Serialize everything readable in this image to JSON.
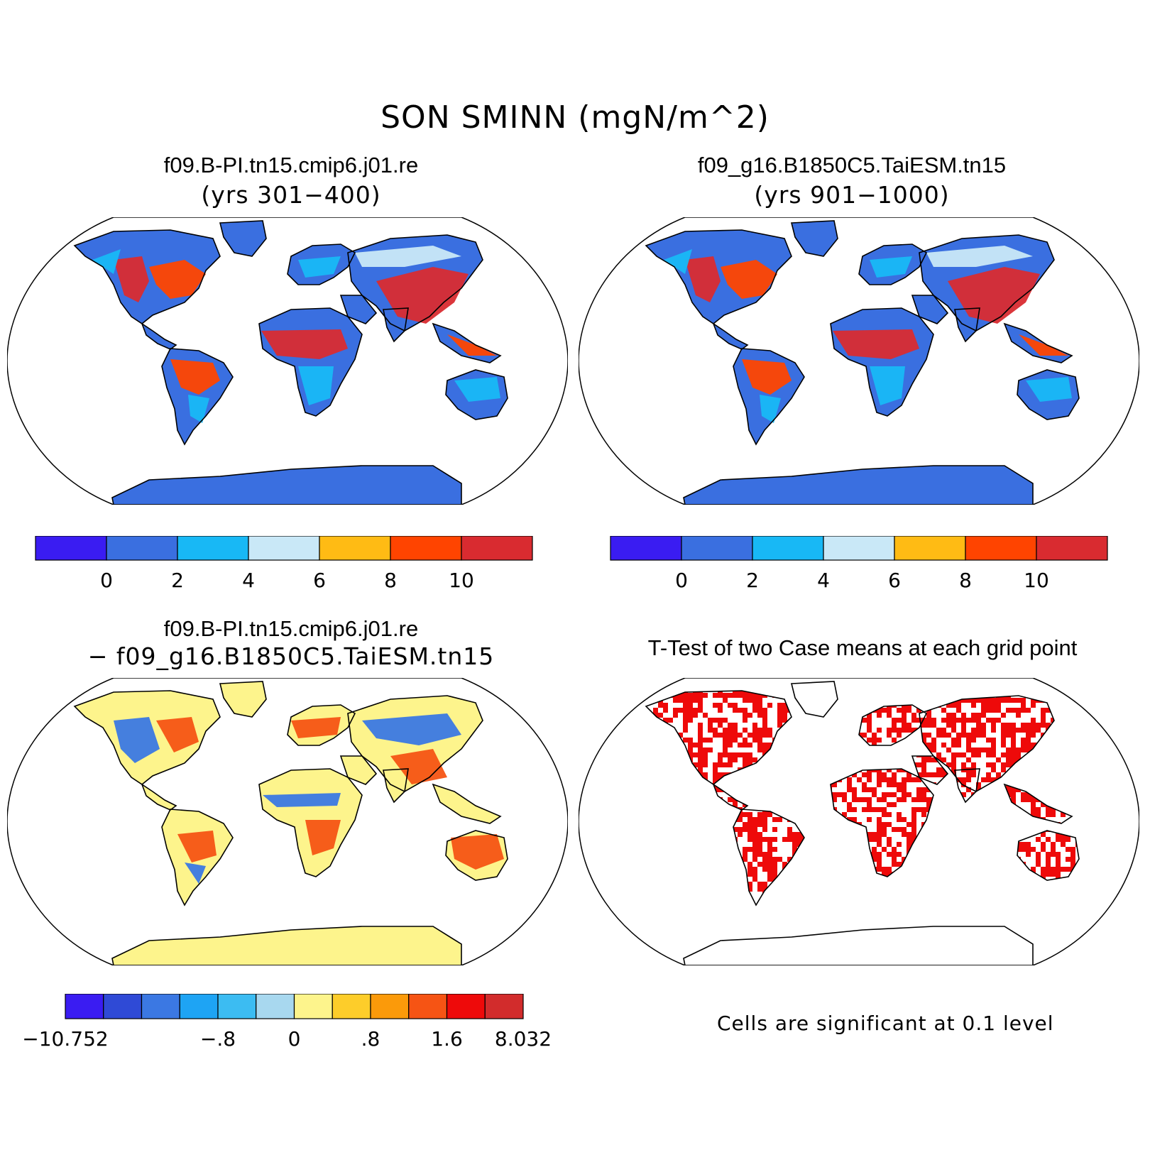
{
  "title": "SON SMINN (mgN/m^2)",
  "panels": {
    "case1": {
      "title": "f09.B-PI.tn15.cmip6.j01.re",
      "subtitle": "(yrs 301−400)"
    },
    "case2": {
      "title": "f09_g16.B1850C5.TaiESM.tn15",
      "subtitle": "(yrs 901−1000)"
    },
    "diff": {
      "title": "f09.B-PI.tn15.cmip6.j01.re",
      "subtitle": "− f09_g16.B1850C5.TaiESM.tn15"
    },
    "ttest": {
      "title": "T-Test of two Case means at each grid point",
      "note": "Cells are significant at 0.1 level"
    }
  },
  "colorbars": {
    "mean": {
      "colors": [
        "#3a1cf2",
        "#3a6fe0",
        "#18b8f5",
        "#c9e8f7",
        "#ffbb14",
        "#ff4400",
        "#d92b30"
      ],
      "labels": [
        "0",
        "2",
        "4",
        "6",
        "8",
        "10"
      ]
    },
    "diff": {
      "colors": [
        "#3a1cf2",
        "#2f4ad6",
        "#3b78e3",
        "#1ea4f4",
        "#3cbcf2",
        "#a8d8ef",
        "#fdf48c",
        "#fdcd2a",
        "#fb9a0a",
        "#f65414",
        "#ee0a0a",
        "#d22c2c"
      ],
      "labels": [
        {
          "text": "−10.752",
          "edge": 0
        },
        {
          "text": "−.8",
          "edge": 4
        },
        {
          "text": "0",
          "edge": 6
        },
        {
          "text": ".8",
          "edge": 8
        },
        {
          "text": "1.6",
          "edge": 10
        },
        {
          "text": "8.032",
          "edge": 12
        }
      ]
    }
  },
  "map_colors": {
    "land_low": "#3a6fe0",
    "land_mid": "#18b8f5",
    "land_light": "#c9e8f7",
    "land_high": "#d92b30",
    "land_orange": "#ff4400",
    "land_amber": "#ffbb14",
    "diff_base": "#fdf48c",
    "diff_blue": "#3b78e3",
    "diff_red": "#f65414",
    "sig": "#ee0a0a"
  }
}
